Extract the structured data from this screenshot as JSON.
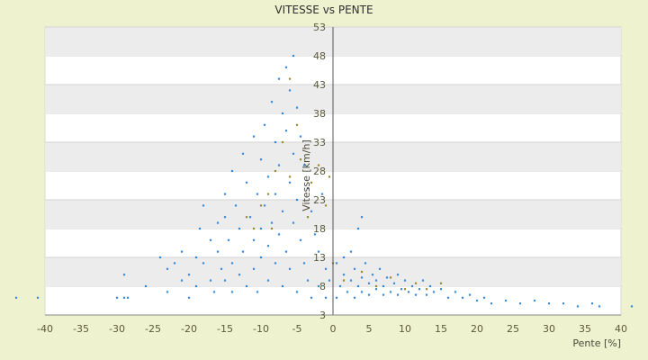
{
  "chart_data": {
    "type": "scatter",
    "title": "VITESSE vs PENTE",
    "xlabel": "Pente [%]",
    "ylabel": "Vitesse [km/h]",
    "xlim": [
      -40,
      40
    ],
    "ylim": [
      3,
      53
    ],
    "x_ticks": [
      -40,
      -35,
      -30,
      -25,
      -20,
      -15,
      -10,
      -5,
      0,
      5,
      10,
      15,
      20,
      25,
      30,
      35,
      40
    ],
    "y_ticks": [
      3,
      8,
      13,
      18,
      23,
      28,
      33,
      38,
      43,
      48,
      53
    ],
    "grid": "horizontal alternating bands",
    "legend": "none",
    "colors": {
      "background": "#eef2cf",
      "band": "#ececec",
      "plot": "#ffffff",
      "series": "#3a8ad8",
      "series_alt": "#9a8a30"
    },
    "series": [
      {
        "points": [
          [
            -44.0,
            6.0
          ],
          [
            -41.0,
            6.0
          ],
          [
            -30.0,
            6.0
          ],
          [
            -29.0,
            6.0
          ],
          [
            -28.5,
            6.0
          ],
          [
            -29.0,
            10.0
          ],
          [
            -26.0,
            8.0
          ],
          [
            -24.0,
            13.0
          ],
          [
            -23.0,
            11.0
          ],
          [
            -23.0,
            7.0
          ],
          [
            -22.0,
            12.0
          ],
          [
            -21.0,
            9.0
          ],
          [
            -21.0,
            14.0
          ],
          [
            -20.0,
            10.0
          ],
          [
            -20.0,
            6.0
          ],
          [
            -19.0,
            13.0
          ],
          [
            -19.0,
            8.0
          ],
          [
            -18.5,
            18.0
          ],
          [
            -18.0,
            22.0
          ],
          [
            -18.0,
            12.0
          ],
          [
            -17.0,
            16.0
          ],
          [
            -17.0,
            9.0
          ],
          [
            -16.5,
            7.0
          ],
          [
            -16.0,
            19.0
          ],
          [
            -16.0,
            14.0
          ],
          [
            -15.5,
            11.0
          ],
          [
            -15.0,
            24.0
          ],
          [
            -15.0,
            20.0
          ],
          [
            -15.0,
            9.0
          ],
          [
            -14.5,
            16.0
          ],
          [
            -14.0,
            28.0
          ],
          [
            -14.0,
            12.0
          ],
          [
            -14.0,
            7.0
          ],
          [
            -13.5,
            22.0
          ],
          [
            -13.0,
            18.0
          ],
          [
            -13.0,
            10.0
          ],
          [
            -12.5,
            31.0
          ],
          [
            -12.5,
            14.0
          ],
          [
            -12.0,
            26.0
          ],
          [
            -12.0,
            8.0
          ],
          [
            -11.5,
            20.0
          ],
          [
            -11.0,
            34.0
          ],
          [
            -11.0,
            16.0
          ],
          [
            -11.0,
            11.0
          ],
          [
            -10.5,
            24.0
          ],
          [
            -10.5,
            7.0
          ],
          [
            -10.0,
            30.0
          ],
          [
            -10.0,
            18.0
          ],
          [
            -10.0,
            13.0
          ],
          [
            -9.5,
            36.0
          ],
          [
            -9.5,
            22.0
          ],
          [
            -9.0,
            27.0
          ],
          [
            -9.0,
            15.0
          ],
          [
            -9.0,
            9.0
          ],
          [
            -8.5,
            40.0
          ],
          [
            -8.5,
            19.0
          ],
          [
            -8.0,
            33.0
          ],
          [
            -8.0,
            24.0
          ],
          [
            -8.0,
            12.0
          ],
          [
            -7.5,
            44.0
          ],
          [
            -7.5,
            29.0
          ],
          [
            -7.5,
            17.0
          ],
          [
            -7.0,
            38.0
          ],
          [
            -7.0,
            21.0
          ],
          [
            -7.0,
            8.0
          ],
          [
            -6.5,
            46.0
          ],
          [
            -6.5,
            35.0
          ],
          [
            -6.5,
            14.0
          ],
          [
            -6.0,
            42.0
          ],
          [
            -6.0,
            26.0
          ],
          [
            -6.0,
            11.0
          ],
          [
            -5.5,
            48.0
          ],
          [
            -5.5,
            31.0
          ],
          [
            -5.5,
            19.0
          ],
          [
            -5.0,
            39.0
          ],
          [
            -5.0,
            23.0
          ],
          [
            -5.0,
            7.0
          ],
          [
            -4.5,
            34.0
          ],
          [
            -4.5,
            16.0
          ],
          [
            -4.0,
            29.0
          ],
          [
            -4.0,
            12.0
          ],
          [
            -3.5,
            25.0
          ],
          [
            -3.5,
            9.0
          ],
          [
            -3.0,
            21.0
          ],
          [
            -3.0,
            6.0
          ],
          [
            -2.5,
            17.0
          ],
          [
            -2.0,
            14.0
          ],
          [
            -2.0,
            8.0
          ],
          [
            -1.5,
            24.0
          ],
          [
            -1.0,
            11.0
          ],
          [
            -1.0,
            6.0
          ],
          [
            -0.5,
            9.0
          ],
          [
            0.5,
            6.0
          ],
          [
            0.5,
            12.0
          ],
          [
            1.0,
            8.0
          ],
          [
            1.5,
            10.0
          ],
          [
            2.0,
            7.0
          ],
          [
            2.5,
            9.0
          ],
          [
            3.0,
            11.0
          ],
          [
            3.0,
            6.0
          ],
          [
            3.5,
            8.0
          ],
          [
            4.0,
            9.5
          ],
          [
            4.0,
            7.0
          ],
          [
            4.5,
            12.0
          ],
          [
            5.0,
            8.5
          ],
          [
            5.0,
            6.5
          ],
          [
            5.5,
            10.0
          ],
          [
            6.0,
            7.5
          ],
          [
            6.0,
            9.0
          ],
          [
            6.5,
            11.0
          ],
          [
            7.0,
            8.0
          ],
          [
            7.0,
            6.5
          ],
          [
            7.5,
            9.5
          ],
          [
            8.0,
            7.0
          ],
          [
            8.5,
            8.5
          ],
          [
            9.0,
            10.0
          ],
          [
            9.0,
            6.5
          ],
          [
            9.5,
            7.5
          ],
          [
            10.0,
            9.0
          ],
          [
            10.5,
            7.0
          ],
          [
            11.0,
            8.0
          ],
          [
            11.5,
            6.5
          ],
          [
            12.0,
            7.5
          ],
          [
            12.5,
            9.0
          ],
          [
            13.0,
            6.5
          ],
          [
            13.5,
            8.0
          ],
          [
            14.0,
            7.0
          ],
          [
            15.0,
            7.5
          ],
          [
            16.0,
            6.0
          ],
          [
            17.0,
            7.0
          ],
          [
            18.0,
            6.0
          ],
          [
            19.0,
            6.5
          ],
          [
            20.0,
            5.5
          ],
          [
            21.0,
            6.0
          ],
          [
            22.0,
            5.0
          ],
          [
            24.0,
            5.5
          ],
          [
            26.0,
            5.0
          ],
          [
            28.0,
            5.5
          ],
          [
            30.0,
            5.0
          ],
          [
            32.0,
            5.0
          ],
          [
            34.0,
            4.5
          ],
          [
            36.0,
            5.0
          ],
          [
            37.0,
            4.5
          ],
          [
            41.5,
            4.5
          ],
          [
            3.5,
            18.0
          ],
          [
            4.0,
            20.0
          ],
          [
            2.5,
            14.0
          ],
          [
            1.5,
            13.0
          ]
        ]
      },
      {
        "points": [
          [
            -12.0,
            20.0
          ],
          [
            -10.0,
            22.0
          ],
          [
            -8.5,
            18.0
          ],
          [
            -7.0,
            33.0
          ],
          [
            -6.0,
            27.0
          ],
          [
            -4.5,
            30.0
          ],
          [
            -3.0,
            26.0
          ],
          [
            -2.0,
            29.0
          ],
          [
            -1.0,
            22.0
          ],
          [
            -0.5,
            27.0
          ],
          [
            -6.0,
            44.0
          ],
          [
            -5.0,
            36.0
          ],
          [
            -3.5,
            20.0
          ],
          [
            0.0,
            12.0
          ],
          [
            1.5,
            9.0
          ],
          [
            4.0,
            10.5
          ],
          [
            6.0,
            8.0
          ],
          [
            8.0,
            9.5
          ],
          [
            10.0,
            7.5
          ],
          [
            11.5,
            8.5
          ],
          [
            13.0,
            7.5
          ],
          [
            15.0,
            8.5
          ],
          [
            -8.0,
            28.0
          ],
          [
            -9.0,
            24.0
          ],
          [
            -11.0,
            18.0
          ]
        ]
      }
    ]
  }
}
